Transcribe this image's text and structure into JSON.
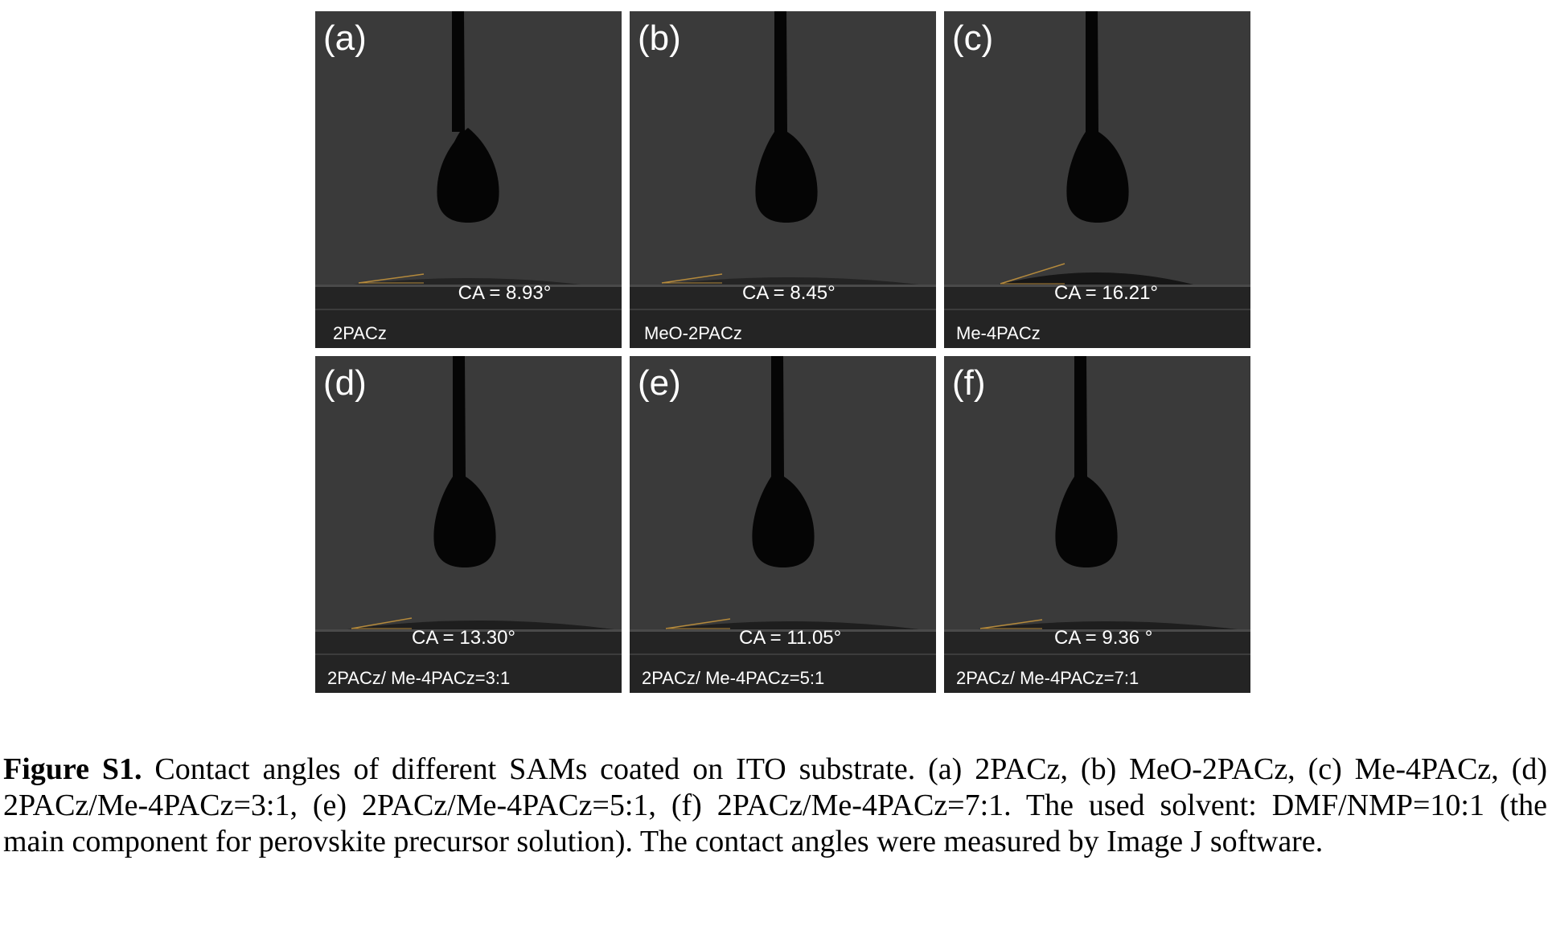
{
  "panels": [
    {
      "letter": "(a)",
      "ca": "CA = 8.93°",
      "sample": "2PACz"
    },
    {
      "letter": "(b)",
      "ca": "CA = 8.45°",
      "sample": "MeO-2PACz"
    },
    {
      "letter": "(c)",
      "ca": "CA = 16.21°",
      "sample": "Me-4PACz"
    },
    {
      "letter": "(d)",
      "ca": "CA = 13.30°",
      "sample": "2PACz/ Me-4PACz=3:1"
    },
    {
      "letter": "(e)",
      "ca": "CA = 11.05°",
      "sample": "2PACz/ Me-4PACz=5:1"
    },
    {
      "letter": "(f)",
      "ca": "CA = 9.36 °",
      "sample": "2PACz/ Me-4PACz=7:1"
    }
  ],
  "caption": {
    "label": "Figure S1.",
    "text": " Contact angles of different SAMs coated on ITO substrate. (a) 2PACz, (b) MeO-2PACz, (c) Me-4PACz, (d) 2PACz/Me-4PACz=3:1, (e) 2PACz/Me-4PACz=5:1, (f) 2PACz/Me-4PACz=7:1. The used solvent: DMF/NMP=10:1 (the main component for perovskite precursor solution). The contact angles were measured by Image J software."
  },
  "colors": {
    "photo_background": "#3a3a3a",
    "substrate": "#262626",
    "droplet": "#050505",
    "angle_line": "#b58a3c",
    "label_text": "#ffffff"
  }
}
